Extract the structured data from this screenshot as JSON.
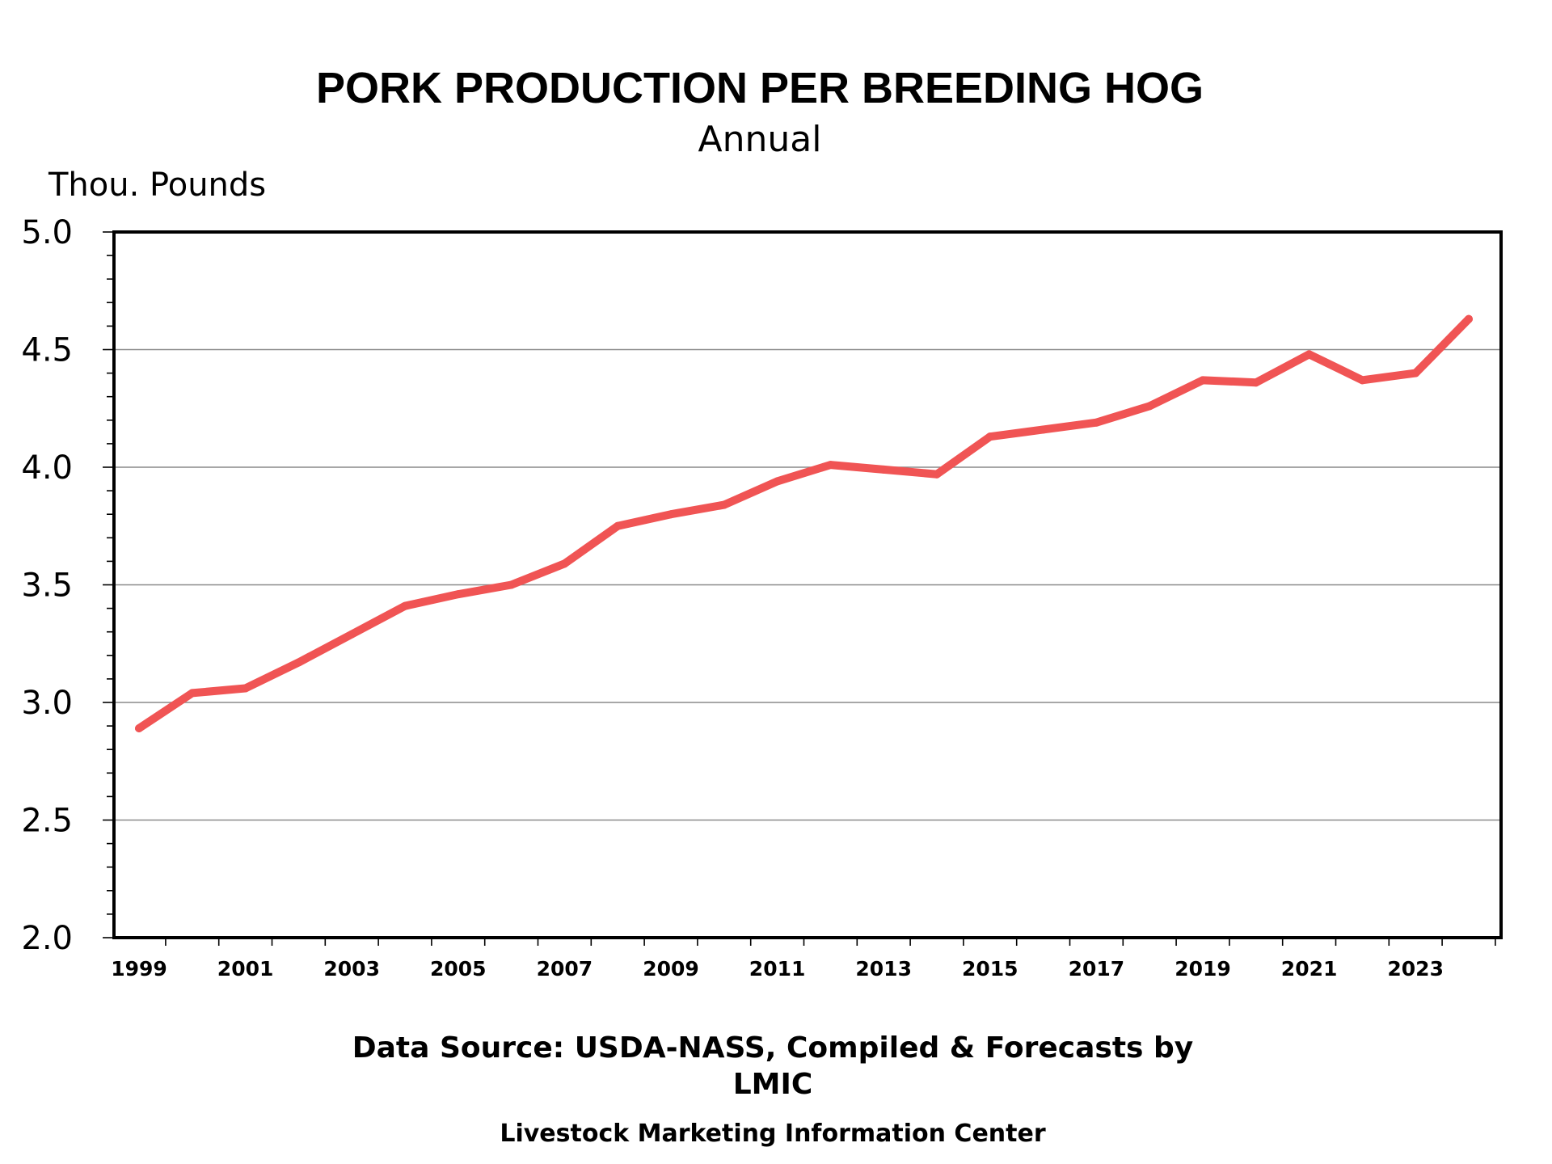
{
  "chart_data": {
    "type": "line",
    "title": "PORK PRODUCTION PER BREEDING HOG",
    "subtitle": "Annual",
    "ylabel": "Thou. Pounds",
    "xlabel": "",
    "ylim": [
      2.0,
      5.0
    ],
    "yticks": [
      "5.0",
      "4.5",
      "4.0",
      "3.5",
      "3.0",
      "2.5",
      "2.0"
    ],
    "xtick_labels": [
      "1999",
      "2001",
      "2003",
      "2005",
      "2007",
      "2009",
      "2011",
      "2013",
      "2015",
      "2017",
      "2019",
      "2021",
      "2023"
    ],
    "grid": "horizontal major gridlines",
    "line_color": "#f05454",
    "series": [
      {
        "x": [
          1999,
          2000,
          2001,
          2002,
          2003,
          2004,
          2005,
          2006,
          2007,
          2008,
          2009,
          2010,
          2011,
          2012,
          2013,
          2014,
          2015,
          2016,
          2017,
          2018,
          2019,
          2020,
          2021,
          2022,
          2023,
          2024
        ],
        "values": [
          2.89,
          3.04,
          3.06,
          3.17,
          3.29,
          3.41,
          3.46,
          3.5,
          3.59,
          3.75,
          3.8,
          3.84,
          3.94,
          4.01,
          3.99,
          3.97,
          4.13,
          4.16,
          4.19,
          4.26,
          4.37,
          4.36,
          4.48,
          4.37,
          4.4,
          4.63
        ]
      }
    ]
  },
  "footer": {
    "source_line1": "Data Source:  USDA-NASS, Compiled & Forecasts by",
    "source_line2": "LMIC",
    "credit": "Livestock Marketing Information Center"
  }
}
